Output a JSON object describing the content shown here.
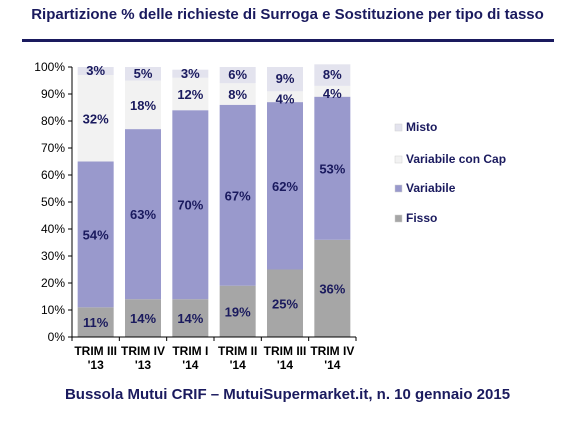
{
  "title": "Ripartizione %  delle richieste di Surroga e Sostituzione per tipo di tasso",
  "footer": "Bussola Mutui CRIF – MutuiSupermarket.it, n. 10 gennaio 2015",
  "chart_data": {
    "type": "bar",
    "stacked": true,
    "categories": [
      [
        "TRIM III",
        "'13"
      ],
      [
        "TRIM IV",
        "'13"
      ],
      [
        "TRIM I",
        "'14"
      ],
      [
        "TRIM II",
        "'14"
      ],
      [
        "TRIM III",
        "'14"
      ],
      [
        "TRIM IV",
        "'14"
      ]
    ],
    "series": [
      {
        "name": "Fisso",
        "values": [
          11,
          14,
          14,
          19,
          25,
          36
        ],
        "labels": [
          "11%",
          "14%",
          "14%",
          "19%",
          "25%",
          "36%"
        ],
        "color": "#a6a6a6"
      },
      {
        "name": "Variabile",
        "values": [
          54,
          63,
          70,
          67,
          62,
          53
        ],
        "labels": [
          "54%",
          "63%",
          "70%",
          "67%",
          "62%",
          "53%"
        ],
        "color": "#9999cc"
      },
      {
        "name": "Variabile con Cap",
        "values": [
          32,
          18,
          12,
          8,
          4,
          4
        ],
        "labels": [
          "32%",
          "18%",
          "12%",
          "8%",
          "4%",
          "4%"
        ],
        "color": "#f2f2f2"
      },
      {
        "name": "Misto",
        "values": [
          3,
          5,
          3,
          6,
          9,
          8
        ],
        "labels": [
          "3%",
          "5%",
          "3%",
          "6%",
          "9%",
          "8%"
        ],
        "color": "#e3e3ee"
      }
    ],
    "ylim": [
      0,
      100
    ],
    "yticks": [
      "0%",
      "10%",
      "20%",
      "30%",
      "40%",
      "50%",
      "60%",
      "70%",
      "80%",
      "90%",
      "100%"
    ],
    "legend_position": "right",
    "legend_order": [
      "Misto",
      "Variabile con Cap",
      "Variabile",
      "Fisso"
    ],
    "grid": false
  }
}
